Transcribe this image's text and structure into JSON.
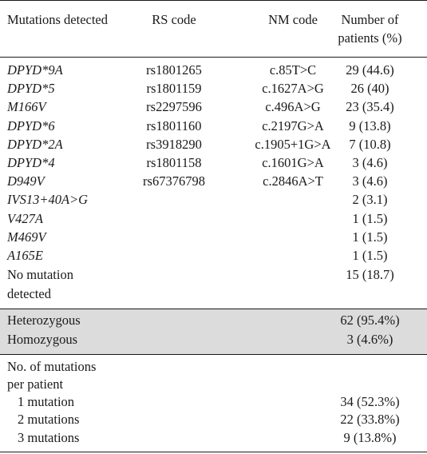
{
  "headers": {
    "mutations": "Mutations detected",
    "rs": "RS code",
    "nm": "NM code",
    "number_line1": "Number of",
    "number_line2": "patients (%)"
  },
  "rows": [
    {
      "mutation": "DPYD*9A",
      "rs": "rs1801265",
      "nm": "c.85T>C",
      "n": "29 (44.6)"
    },
    {
      "mutation": "DPYD*5",
      "rs": "rs1801159",
      "nm": "c.1627A>G",
      "n": "26 (40)"
    },
    {
      "mutation": "M166V",
      "rs": "rs2297596",
      "nm": "c.496A>G",
      "n": "23 (35.4)"
    },
    {
      "mutation": "DPYD*6",
      "rs": "rs1801160",
      "nm": "c.2197G>A",
      "n": "9 (13.8)"
    },
    {
      "mutation": "DPYD*2A",
      "rs": "rs3918290",
      "nm": "c.1905+1G>A",
      "n": "7 (10.8)"
    },
    {
      "mutation": "DPYD*4",
      "rs": "rs1801158",
      "nm": "c.1601G>A",
      "n": "3 (4.6)"
    },
    {
      "mutation": "D949V",
      "rs": "rs67376798",
      "nm": "c.2846A>T",
      "n": "3 (4.6)"
    },
    {
      "mutation": "IVS13+40A>G",
      "rs": "",
      "nm": "",
      "n": "2 (3.1)"
    },
    {
      "mutation": "V427A",
      "rs": "",
      "nm": "",
      "n": "1 (1.5)"
    },
    {
      "mutation": "M469V",
      "rs": "",
      "nm": "",
      "n": "1 (1.5)"
    },
    {
      "mutation": "A165E",
      "rs": "",
      "nm": "",
      "n": "1 (1.5)"
    }
  ],
  "no_mutation": {
    "line1": "No mutation",
    "line2": "detected",
    "n": "15 (18.7)"
  },
  "zygosity": [
    {
      "label": "Heterozygous",
      "n": "62 (95.4%)"
    },
    {
      "label": "Homozygous",
      "n": "3 (4.6%)"
    }
  ],
  "per_patient": {
    "line1": "No. of mutations",
    "line2": "per patient",
    "items": [
      {
        "label": "1 mutation",
        "n": "34 (52.3%)"
      },
      {
        "label": "2 mutations",
        "n": "22 (33.8%)"
      },
      {
        "label": "3 mutations",
        "n": "9 (13.8%)"
      }
    ]
  },
  "colors": {
    "shade": "#dcdcdc",
    "text": "#1a1a1a"
  }
}
